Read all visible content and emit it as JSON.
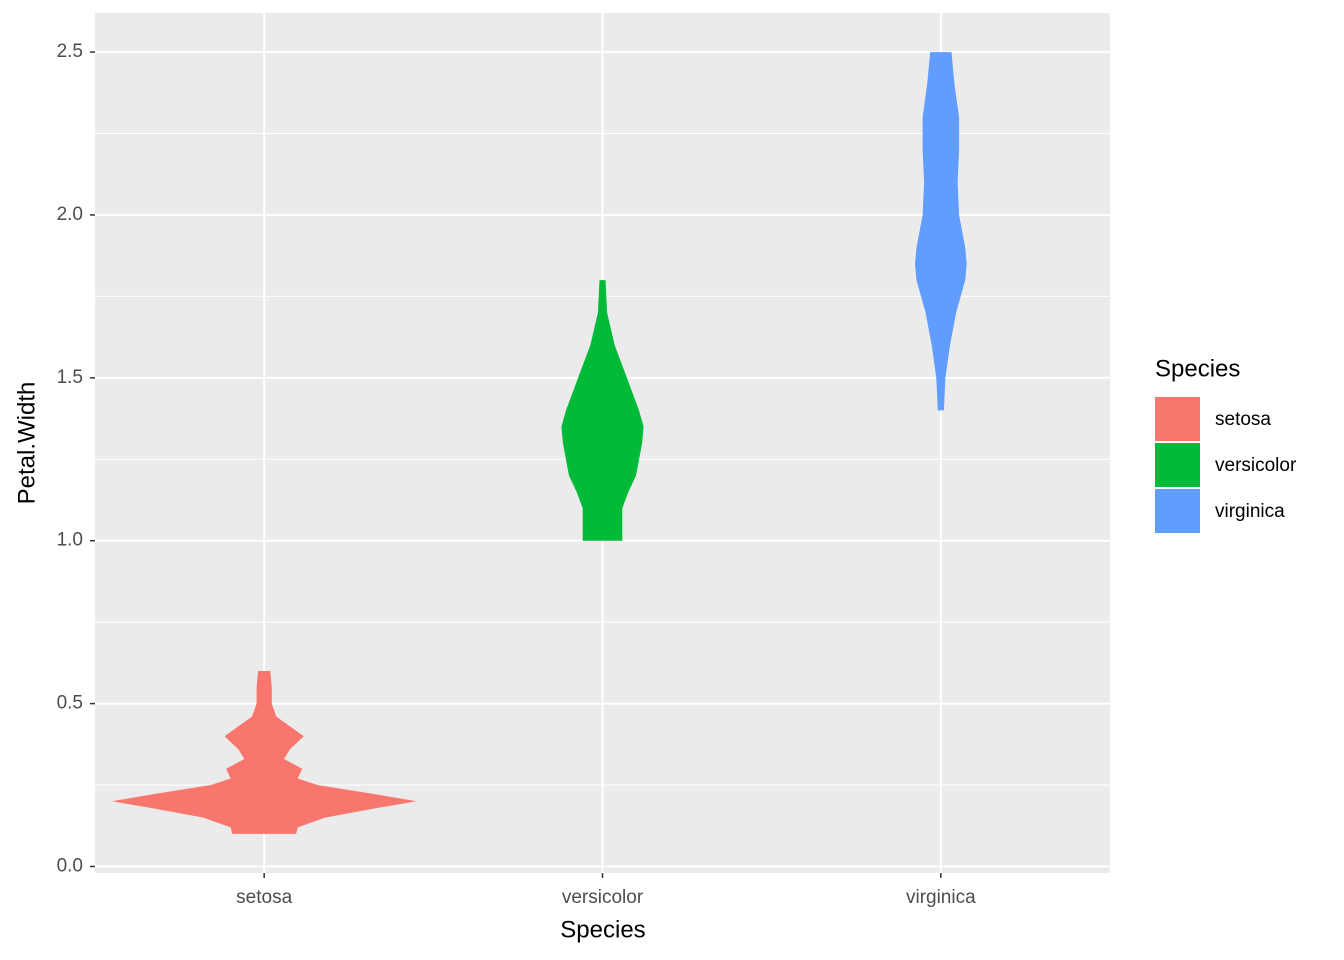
{
  "chart_data": {
    "type": "violin",
    "x_label": "Species",
    "y_label": "Petal.Width",
    "legend_title": "Species",
    "legend_position": "right",
    "categories": [
      "setosa",
      "versicolor",
      "virginica"
    ],
    "ylim": [
      -0.02,
      2.62
    ],
    "yticks": [
      {
        "value": 0,
        "label": "0.0"
      },
      0.5,
      {
        "value": 1,
        "label": "1.0"
      },
      1.5,
      {
        "value": 2,
        "label": "2.0"
      },
      2.5
    ],
    "grid": true,
    "minor_grid": true,
    "series": [
      {
        "name": "setosa",
        "color": "#f8766d",
        "y": [
          0.1,
          0.12,
          0.15,
          0.18,
          0.2,
          0.22,
          0.25,
          0.27,
          0.3,
          0.33,
          0.36,
          0.4,
          0.43,
          0.46,
          0.5,
          0.55,
          0.6
        ],
        "width": [
          0.21,
          0.22,
          0.4,
          0.75,
          1.0,
          0.75,
          0.35,
          0.22,
          0.25,
          0.13,
          0.17,
          0.26,
          0.17,
          0.08,
          0.05,
          0.05,
          0.04
        ]
      },
      {
        "name": "versicolor",
        "color": "#00ba38",
        "y": [
          1.0,
          1.1,
          1.15,
          1.2,
          1.3,
          1.35,
          1.4,
          1.5,
          1.6,
          1.7,
          1.8
        ],
        "width": [
          0.13,
          0.13,
          0.17,
          0.22,
          0.26,
          0.27,
          0.24,
          0.16,
          0.08,
          0.03,
          0.02
        ]
      },
      {
        "name": "virginica",
        "color": "#619cff",
        "y": [
          1.4,
          1.5,
          1.6,
          1.7,
          1.8,
          1.85,
          1.9,
          2.0,
          2.1,
          2.2,
          2.3,
          2.4,
          2.5
        ],
        "width": [
          0.02,
          0.03,
          0.06,
          0.1,
          0.16,
          0.17,
          0.16,
          0.12,
          0.11,
          0.12,
          0.12,
          0.09,
          0.07
        ]
      }
    ]
  }
}
